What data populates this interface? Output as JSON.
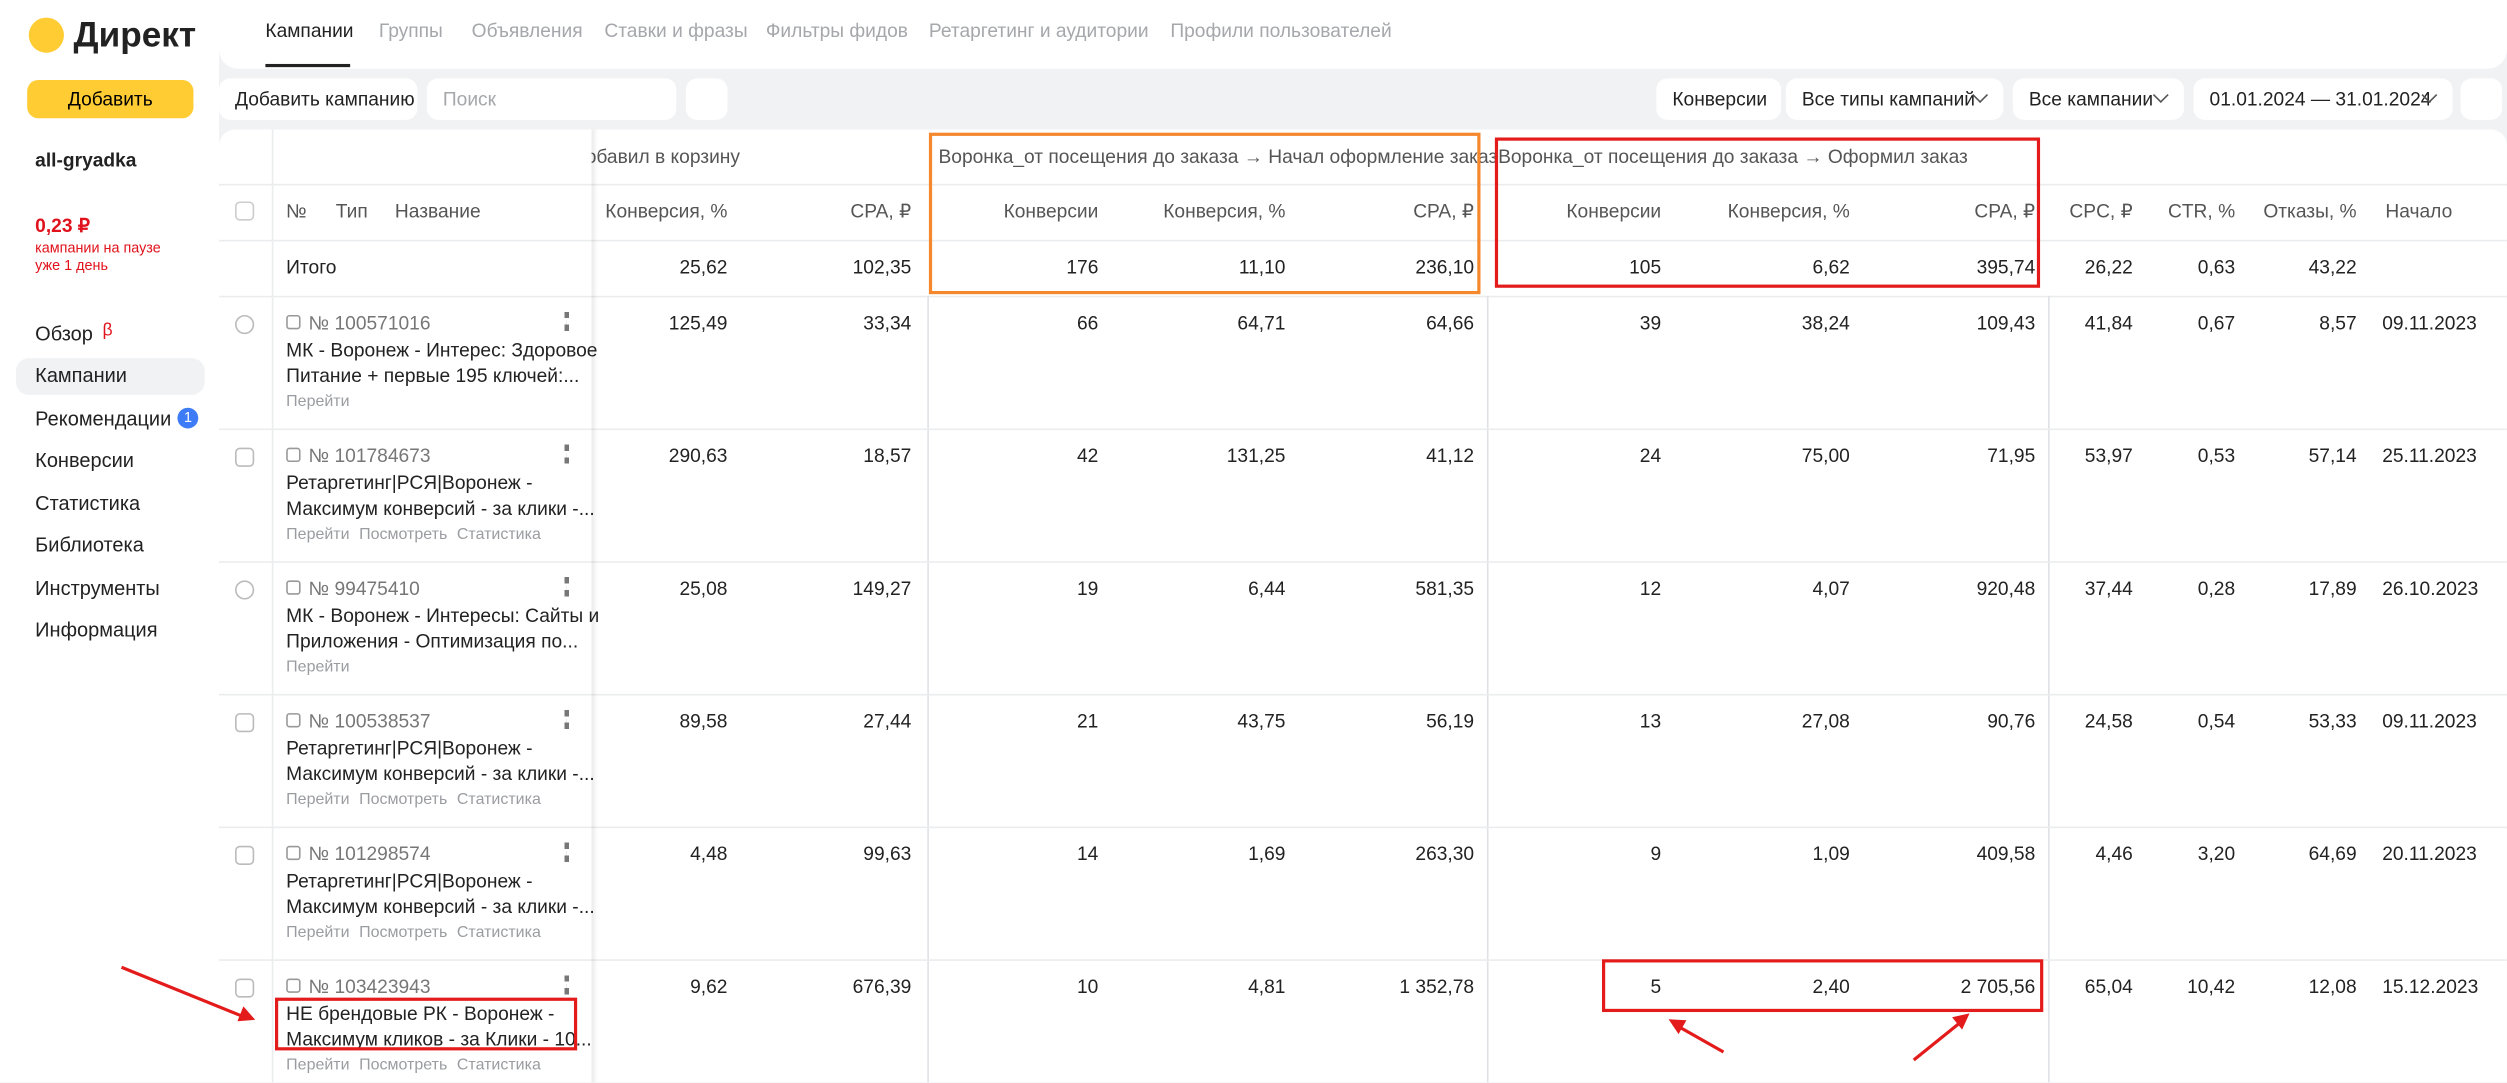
{
  "logo": "Директ",
  "tabs": [
    "Кампании",
    "Группы",
    "Объявления",
    "Ставки и фразы",
    "Фильтры фидов",
    "Ретаргетинг и аудитории",
    "Профили пользователей"
  ],
  "sidebar": {
    "add_button": "Добавить",
    "account": "all-gryadka",
    "balance": "0,23 ₽",
    "balance_note": [
      "кампании на паузе",
      "уже 1 день"
    ],
    "menu": [
      {
        "label": "Обзор",
        "badge": "β"
      },
      {
        "label": "Кампании"
      },
      {
        "label": "Рекомендации",
        "badge": "1"
      },
      {
        "label": "Конверсии"
      },
      {
        "label": "Статистика"
      },
      {
        "label": "Библиотека"
      },
      {
        "label": "Инструменты"
      },
      {
        "label": "Информация"
      }
    ]
  },
  "toolbar": {
    "add_campaign": "Добавить кампанию",
    "search_placeholder": "Поиск",
    "filters": [
      "Конверсии",
      "Все типы кампаний",
      "Все кампании",
      "01.01.2024 — 31.01.2024"
    ]
  },
  "table": {
    "groups": [
      "заказа → Добавил в корзину",
      "Воронка_от посещения до заказа → Начал оформление заказа",
      "Воронка_от посещения до заказа → Оформил заказ"
    ],
    "name_columns": [
      "№",
      "Тип",
      "Название"
    ],
    "columns": [
      "Конверсия, %",
      "CPA, ₽",
      "Конверсии",
      "Конверсия, %",
      "CPA, ₽",
      "Конверсии",
      "Конверсия, %",
      "CPA, ₽",
      "CPC, ₽",
      "CTR, %",
      "Отказы, %",
      "Начало"
    ],
    "total": {
      "label": "Итого",
      "cells": [
        "25,62",
        "102,35",
        "176",
        "11,10",
        "236,10",
        "105",
        "6,62",
        "395,74",
        "26,22",
        "0,63",
        "43,22"
      ]
    },
    "rows": [
      {
        "id": "№ 100571016",
        "name": [
          "МК - Воронеж - Интерес: Здоровое",
          "Питание + первые 195 ключей:..."
        ],
        "links": [
          "Перейти"
        ],
        "cells": [
          "125,49",
          "33,34",
          "66",
          "64,71",
          "64,66",
          "39",
          "38,24",
          "109,43",
          "41,84",
          "0,67",
          "8,57",
          "09.11.2023"
        ]
      },
      {
        "id": "№ 101784673",
        "name": [
          "Ретаргетинг|РСЯ|Воронеж -",
          "Максимум конверсий - за клики -..."
        ],
        "links": [
          "Перейти",
          "Посмотреть",
          "Статистика"
        ],
        "cells": [
          "290,63",
          "18,57",
          "42",
          "131,25",
          "41,12",
          "24",
          "75,00",
          "71,95",
          "53,97",
          "0,53",
          "57,14",
          "25.11.2023"
        ]
      },
      {
        "id": "№ 99475410",
        "name": [
          "МК - Воронеж - Интересы: Сайты и",
          "Приложения - Оптимизация по..."
        ],
        "links": [
          "Перейти"
        ],
        "cells": [
          "25,08",
          "149,27",
          "19",
          "6,44",
          "581,35",
          "12",
          "4,07",
          "920,48",
          "37,44",
          "0,28",
          "17,89",
          "26.10.2023"
        ]
      },
      {
        "id": "№ 100538537",
        "name": [
          "Ретаргетинг|РСЯ|Воронеж -",
          "Максимум конверсий - за клики -..."
        ],
        "links": [
          "Перейти",
          "Посмотреть",
          "Статистика"
        ],
        "cells": [
          "89,58",
          "27,44",
          "21",
          "43,75",
          "56,19",
          "13",
          "27,08",
          "90,76",
          "24,58",
          "0,54",
          "53,33",
          "09.11.2023"
        ]
      },
      {
        "id": "№ 101298574",
        "name": [
          "Ретаргетинг|РСЯ|Воронеж -",
          "Максимум конверсий - за клики -..."
        ],
        "links": [
          "Перейти",
          "Посмотреть",
          "Статистика"
        ],
        "cells": [
          "4,48",
          "99,63",
          "14",
          "1,69",
          "263,30",
          "9",
          "1,09",
          "409,58",
          "4,46",
          "3,20",
          "64,69",
          "20.11.2023"
        ]
      },
      {
        "id": "№ 103423943",
        "name": [
          "НЕ брендовые РК - Воронеж -",
          "Максимум кликов - за Клики - 10..."
        ],
        "links": [
          "Перейти",
          "Посмотреть",
          "Статистика"
        ],
        "cells": [
          "9,62",
          "676,39",
          "10",
          "4,81",
          "1 352,78",
          "5",
          "2,40",
          "2 705,56",
          "65,04",
          "10,42",
          "12,08",
          "15.12.2023"
        ]
      }
    ]
  }
}
